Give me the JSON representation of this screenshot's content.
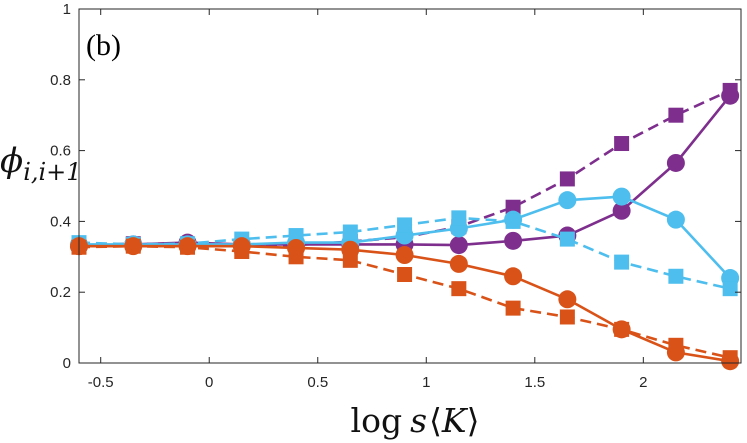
{
  "chart_data": {
    "type": "line",
    "panel_label": "(b)",
    "xlabel": "log s⟨K⟩",
    "xlabel_parts": {
      "fn": "log",
      "var": "s",
      "open": "⟨",
      "inner": "K",
      "close": "⟩"
    },
    "ylabel": "ϕi,i+1",
    "ylabel_parts": {
      "sym": "ϕ",
      "sub": "i,i+1"
    },
    "xlim": [
      -0.6,
      2.45
    ],
    "ylim": [
      0,
      1
    ],
    "xticks": [
      -0.5,
      0,
      0.5,
      1,
      1.5,
      2
    ],
    "xtick_labels": [
      "-0.5",
      "0",
      "0.5",
      "1",
      "1.5",
      "2"
    ],
    "yticks": [
      0,
      0.2,
      0.4,
      0.6,
      0.8,
      1
    ],
    "ytick_labels": [
      "0",
      "0.2",
      "0.4",
      "0.6",
      "0.8",
      "1"
    ],
    "grid": false,
    "x": [
      -0.6,
      -0.35,
      -0.1,
      0.15,
      0.4,
      0.65,
      0.9,
      1.15,
      1.4,
      1.65,
      1.9,
      2.15,
      2.4
    ],
    "series": [
      {
        "name": "purple-circles-solid",
        "color": "#7E2F8E",
        "marker": "circle",
        "line": "solid",
        "values": [
          0.33,
          0.335,
          0.34,
          0.335,
          0.335,
          0.335,
          0.335,
          0.333,
          0.345,
          0.36,
          0.43,
          0.565,
          0.755
        ]
      },
      {
        "name": "purple-squares-dashed",
        "color": "#7E2F8E",
        "marker": "square",
        "line": "dashed",
        "values": [
          0.333,
          0.337,
          0.335,
          0.33,
          0.333,
          0.343,
          0.355,
          0.385,
          0.44,
          0.52,
          0.62,
          0.7,
          0.77
        ]
      },
      {
        "name": "cyan-circles-solid",
        "color": "#4DBEEE",
        "marker": "circle",
        "line": "solid",
        "values": [
          0.335,
          0.335,
          0.335,
          0.335,
          0.34,
          0.34,
          0.36,
          0.38,
          0.405,
          0.46,
          0.47,
          0.405,
          0.24
        ]
      },
      {
        "name": "cyan-squares-dashed",
        "color": "#4DBEEE",
        "marker": "square",
        "line": "dashed",
        "values": [
          0.34,
          0.335,
          0.337,
          0.35,
          0.36,
          0.37,
          0.39,
          0.41,
          0.4,
          0.35,
          0.285,
          0.245,
          0.21
        ]
      },
      {
        "name": "orange-circles-solid",
        "color": "#D95319",
        "marker": "circle",
        "line": "solid",
        "values": [
          0.33,
          0.33,
          0.33,
          0.33,
          0.325,
          0.32,
          0.305,
          0.28,
          0.245,
          0.18,
          0.095,
          0.03,
          0.005
        ]
      },
      {
        "name": "orange-squares-dashed",
        "color": "#D95319",
        "marker": "square",
        "line": "dashed",
        "values": [
          0.327,
          0.33,
          0.327,
          0.315,
          0.3,
          0.29,
          0.25,
          0.21,
          0.155,
          0.13,
          0.095,
          0.05,
          0.015
        ]
      }
    ]
  }
}
